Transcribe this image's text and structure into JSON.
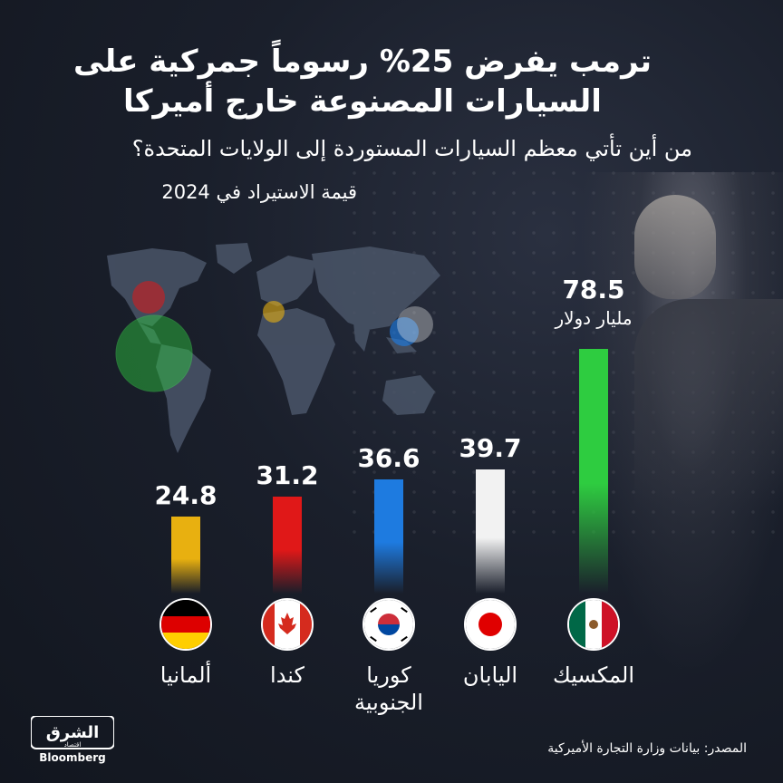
{
  "title_line1": "ترمب يفرض 25% رسوماً جمركية على",
  "title_line2": "السيارات المصنوعة خارج أميركا",
  "subtitle": "من أين تأتي معظم السيارات المستوردة إلى الولايات المتحدة؟",
  "subtitle2": "قيمة الاستيراد في 2024",
  "unit_label": "مليار دولار",
  "source": "المصدر: بيانات وزارة التجارة الأميركية",
  "logo": {
    "main": "الشرق",
    "sub": "اقتصاد",
    "brand": "Bloomberg"
  },
  "colors": {
    "mexico": "#2ecc40",
    "japan": "#f2f2f2",
    "korea": "#1e7be0",
    "canada": "#e01818",
    "germany": "#e8b010"
  },
  "chart_data": {
    "type": "bar",
    "title": "قيمة الاستيراد في 2024",
    "categories": [
      "المكسيك",
      "اليابان",
      "كوريا الجنوبية",
      "كندا",
      "ألمانيا"
    ],
    "category_lines": [
      [
        "المكسيك"
      ],
      [
        "اليابان"
      ],
      [
        "كوريا",
        "الجنوبية"
      ],
      [
        "كندا"
      ],
      [
        "ألمانيا"
      ]
    ],
    "values": [
      78.5,
      39.7,
      36.6,
      31.2,
      24.8
    ],
    "value_labels": [
      "78.5",
      "39.7",
      "36.6",
      "31.2",
      "24.8"
    ],
    "unit": "مليار دولار",
    "ylim": [
      0,
      78.5
    ],
    "grid": false,
    "legend": "none"
  }
}
